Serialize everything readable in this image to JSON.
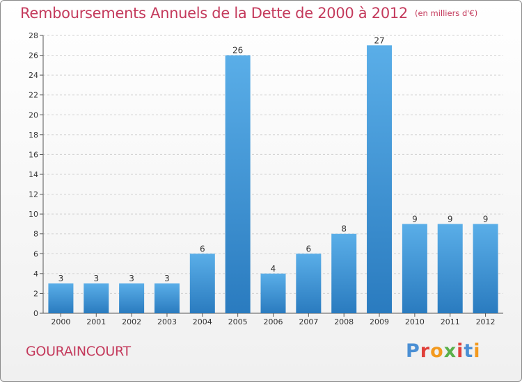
{
  "header": {
    "title": "Remboursements Annuels de la Dette de 2000 à 2012",
    "unit": "(en milliers d'€)"
  },
  "footer": {
    "commune": "GOURAINCOURT",
    "logo_text": "Proxiti",
    "logo_colors": [
      "#4a8fd4",
      "#e0403a",
      "#f39a1f",
      "#5ab04a",
      "#e0403a",
      "#4a8fd4",
      "#f39a1f"
    ]
  },
  "colors": {
    "title": "#c43a5c",
    "bar_top": "#5aaee8",
    "bar_bottom": "#2a7bbf",
    "grid": "#d0d0d0",
    "axis": "#555555"
  },
  "chart_data": {
    "type": "bar",
    "categories": [
      "2000",
      "2001",
      "2002",
      "2003",
      "2004",
      "2005",
      "2006",
      "2007",
      "2008",
      "2009",
      "2010",
      "2011",
      "2012"
    ],
    "values": [
      3,
      3,
      3,
      3,
      6,
      26,
      4,
      6,
      8,
      27,
      9,
      9,
      9
    ],
    "data_labels": [
      "3",
      "3",
      "3",
      "3",
      "6",
      "26",
      "4",
      "6",
      "8",
      "27",
      "9",
      "9",
      "9"
    ],
    "yticks": [
      "0",
      "2",
      "4",
      "6",
      "8",
      "10",
      "12",
      "14",
      "16",
      "18",
      "20",
      "22",
      "24",
      "26",
      "28"
    ],
    "ylim": [
      0,
      28
    ],
    "grid": true,
    "xlabel": "",
    "ylabel": ""
  }
}
